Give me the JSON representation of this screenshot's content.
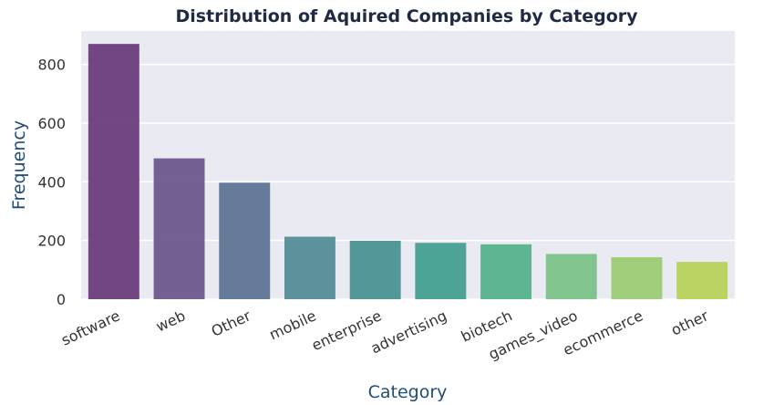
{
  "chart_data": {
    "type": "bar",
    "title": "Distribution of Aquired Companies by Category",
    "xlabel": "Category",
    "ylabel": "Frequency",
    "categories": [
      "software",
      "web",
      "Other",
      "mobile",
      "enterprise",
      "advertising",
      "biotech",
      "games_video",
      "ecommerce",
      "other"
    ],
    "values": [
      870,
      480,
      397,
      213,
      199,
      192,
      187,
      154,
      143,
      127
    ],
    "yticks": [
      "0",
      "200",
      "400",
      "600",
      "800"
    ],
    "ylim": [
      0,
      914
    ],
    "grid": true,
    "colors": [
      "#6a3d7c",
      "#6b5a8c",
      "#5f7593",
      "#538d96",
      "#4a9394",
      "#44a090",
      "#55b38b",
      "#7cc287",
      "#9ccc73",
      "#b8d25a"
    ],
    "background": "#eaeaf2"
  }
}
